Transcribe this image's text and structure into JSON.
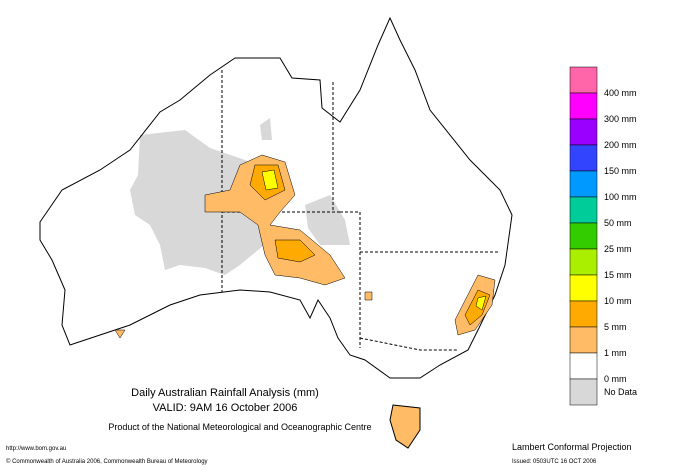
{
  "header": {
    "title": "Daily Australian Rainfall Analysis (mm)",
    "valid": "VALID: 9AM 16 October 2006",
    "product": "Product of the National Meteorological and Oceanographic Centre"
  },
  "footer": {
    "url": "http://www.bom.gov.au",
    "copyright": "© Commonwealth of Australia 2006, Commonwealth Bureau of Meteorology",
    "projection": "Lambert Conformal Projection",
    "issued": "Issued: 0503UTC 16 OCT 2006"
  },
  "legend": {
    "colors": [
      "#ff66aa",
      "#ff00ff",
      "#9900ff",
      "#3344ff",
      "#0099ff",
      "#00cc99",
      "#33cc00",
      "#aaee00",
      "#ffff00",
      "#ffaa00",
      "#ffbb66",
      "#ffffff",
      "#d8d8d8"
    ],
    "labels": [
      "400 mm",
      "300 mm",
      "200 mm",
      "150 mm",
      "100 mm",
      "50 mm",
      "25 mm",
      "15 mm",
      "10 mm",
      "5 mm",
      "1 mm",
      "0 mm",
      "No Data"
    ]
  }
}
